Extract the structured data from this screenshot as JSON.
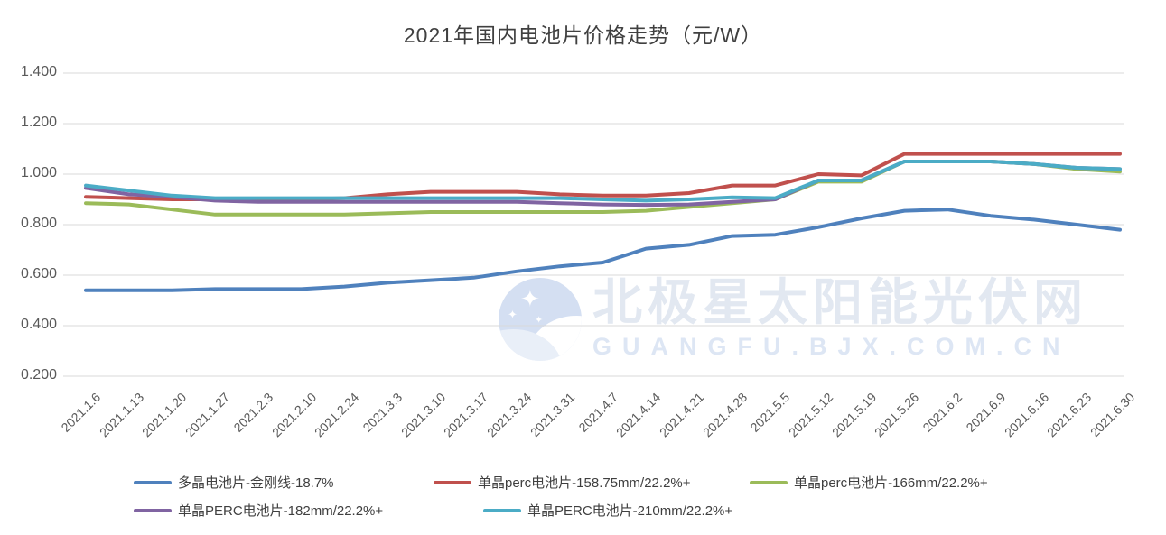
{
  "title": "2021年国内电池片价格走势（元/W）",
  "watermark": {
    "logo": "polaris-star-moon-logo",
    "line1": "北极星太阳能光伏网",
    "line2": "GUANGFU.BJX.COM.CN"
  },
  "colors": {
    "gridline": "#d9d9d9",
    "axis_text": "#595959",
    "title_text": "#404040",
    "legend_text": "#3f3f3f",
    "background": "#ffffff"
  },
  "chart_data": {
    "type": "line",
    "title": "2021年国内电池片价格走势（元/W）",
    "xlabel": "",
    "ylabel": "",
    "ylim": [
      0.2,
      1.4
    ],
    "ytick_step": 0.2,
    "ytick_labels": [
      "0.200",
      "0.400",
      "0.600",
      "0.800",
      "1.000",
      "1.200",
      "1.400"
    ],
    "grid": "horizontal",
    "legend_position": "bottom",
    "categories": [
      "2021.1.6",
      "2021.1.13",
      "2021.1.20",
      "2021.1.27",
      "2021.2.3",
      "2021.2.10",
      "2021.2.24",
      "2021.3.3",
      "2021.3.10",
      "2021.3.17",
      "2021.3.24",
      "2021.3.31",
      "2021.4.7",
      "2021.4.14",
      "2021.4.21",
      "2021.4.28",
      "2021.5.5",
      "2021.5.12",
      "2021.5.19",
      "2021.5.26",
      "2021.6.2",
      "2021.6.9",
      "2021.6.16",
      "2021.6.23",
      "2021.6.30"
    ],
    "series": [
      {
        "name": "多晶电池片-金刚线-18.7%",
        "color": "#4F81BD",
        "values": [
          0.54,
          0.54,
          0.54,
          0.545,
          0.545,
          0.545,
          0.555,
          0.57,
          0.58,
          0.59,
          0.615,
          0.635,
          0.65,
          0.705,
          0.72,
          0.755,
          0.76,
          0.79,
          0.825,
          0.855,
          0.86,
          0.835,
          0.82,
          0.8,
          0.78
        ]
      },
      {
        "name": "单晶perc电池片-158.75mm/22.2%+",
        "color": "#C0504D",
        "values": [
          0.91,
          0.905,
          0.9,
          0.9,
          0.9,
          0.9,
          0.905,
          0.92,
          0.93,
          0.93,
          0.93,
          0.92,
          0.915,
          0.915,
          0.925,
          0.955,
          0.955,
          1.0,
          0.995,
          1.08,
          1.08,
          1.08,
          1.08,
          1.08,
          1.08
        ]
      },
      {
        "name": "单晶perc电池片-166mm/22.2%+",
        "color": "#9BBB59",
        "values": [
          0.885,
          0.88,
          0.86,
          0.84,
          0.84,
          0.84,
          0.84,
          0.845,
          0.85,
          0.85,
          0.85,
          0.85,
          0.85,
          0.855,
          0.87,
          0.885,
          0.9,
          0.97,
          0.97,
          1.05,
          1.05,
          1.05,
          1.04,
          1.02,
          1.01
        ]
      },
      {
        "name": "单晶PERC电池片-182mm/22.2%+",
        "color": "#8064A2",
        "values": [
          0.945,
          0.92,
          0.91,
          0.895,
          0.89,
          0.89,
          0.89,
          0.89,
          0.89,
          0.89,
          0.89,
          0.885,
          0.88,
          0.878,
          0.88,
          0.89,
          0.9,
          0.975,
          0.975,
          1.05,
          1.05,
          1.05,
          1.04,
          1.025,
          1.02
        ]
      },
      {
        "name": "单晶PERC电池片-210mm/22.2%+",
        "color": "#4BACC6",
        "values": [
          0.955,
          0.935,
          0.915,
          0.905,
          0.905,
          0.905,
          0.905,
          0.905,
          0.905,
          0.905,
          0.905,
          0.905,
          0.9,
          0.895,
          0.9,
          0.908,
          0.905,
          0.975,
          0.975,
          1.05,
          1.05,
          1.05,
          1.04,
          1.025,
          1.02
        ]
      }
    ]
  }
}
